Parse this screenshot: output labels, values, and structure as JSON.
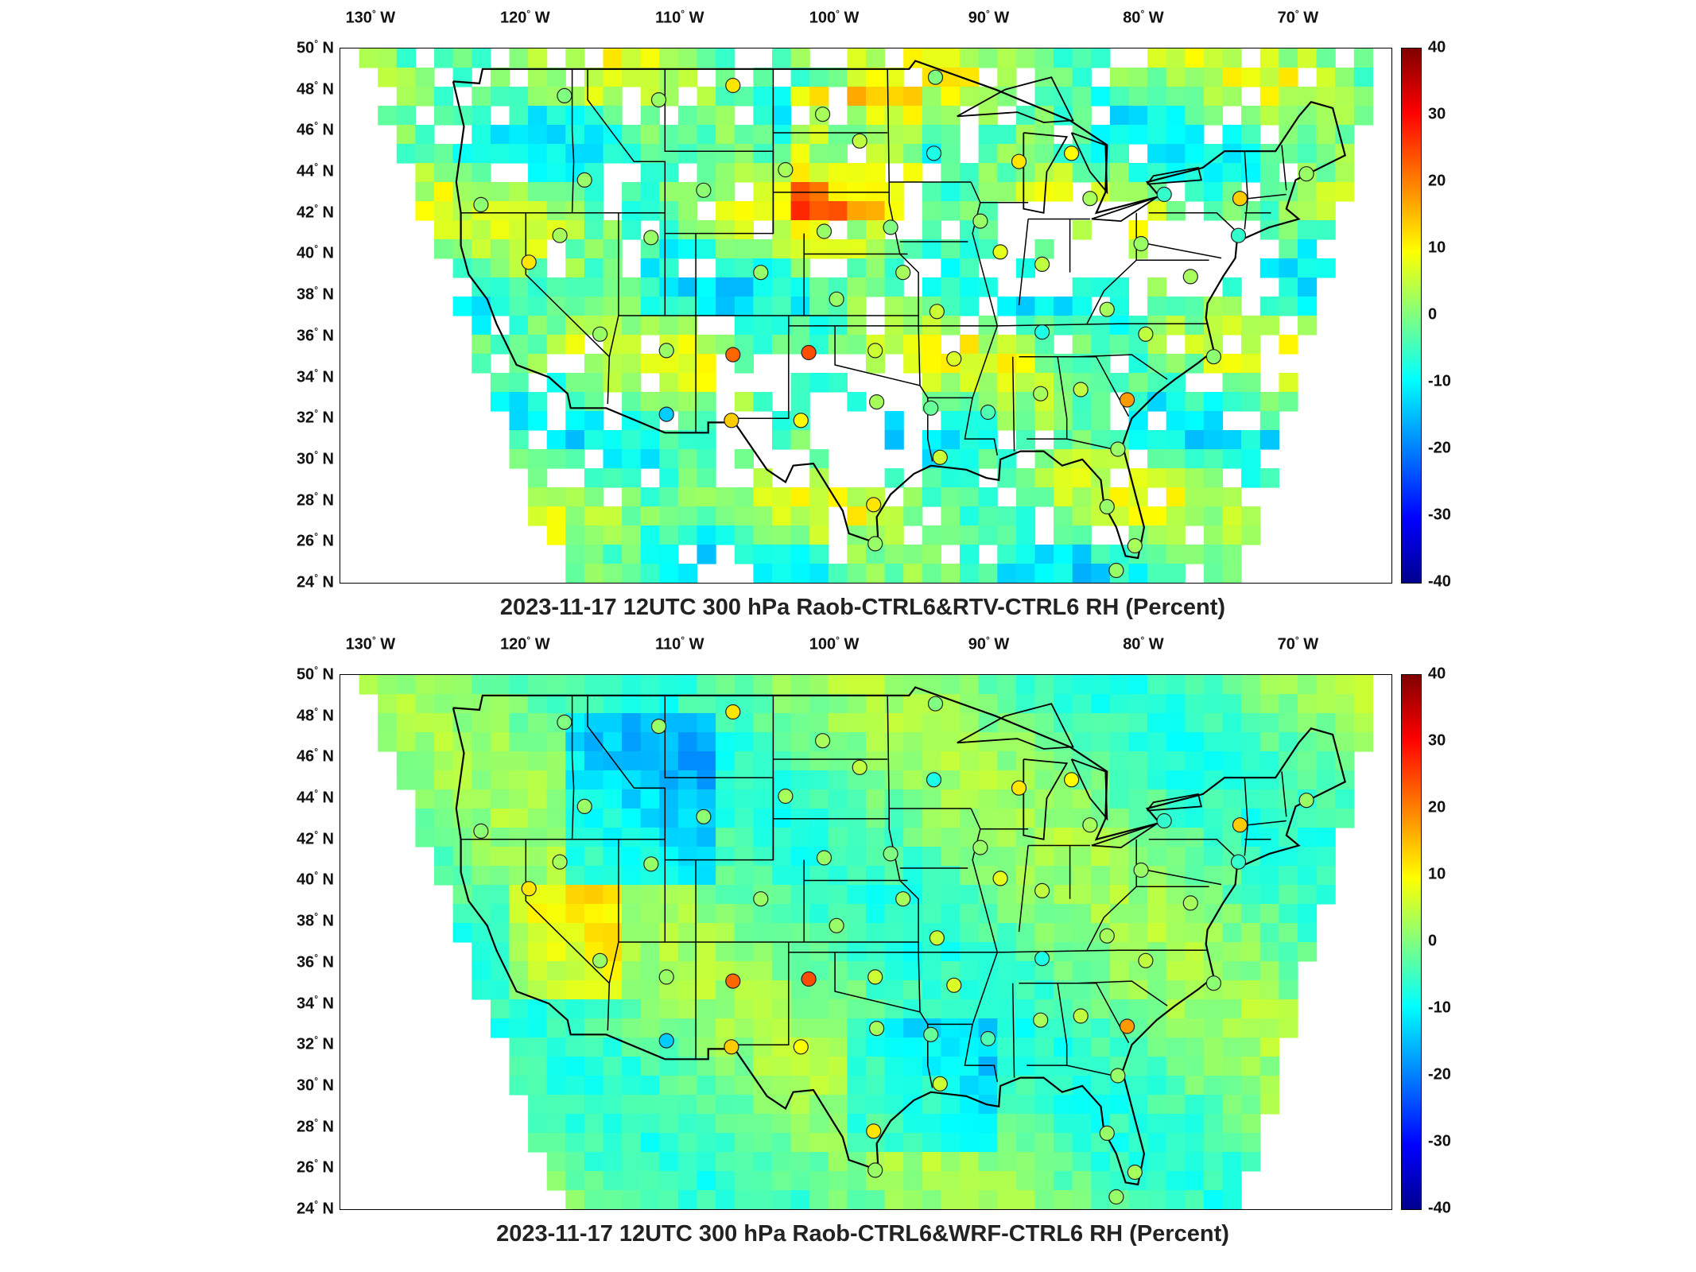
{
  "panels": [
    {
      "title": "2023-11-17 12UTC 300 hPa Raob-CTRL6&RTV-CTRL6 RH (Percent)",
      "field": "RTV",
      "lon_labels": [
        "130",
        "120",
        "110",
        "100",
        "90",
        "80",
        "70"
      ],
      "lon_suffix": "W",
      "lat_labels": [
        "50",
        "48",
        "46",
        "44",
        "42",
        "40",
        "38",
        "36",
        "34",
        "32",
        "30",
        "28",
        "26",
        "24"
      ],
      "lat_suffix": "N",
      "colorbar_ticks": [
        "40",
        "30",
        "20",
        "10",
        "0",
        "-10",
        "-20",
        "-30",
        "-40"
      ]
    },
    {
      "title": "2023-11-17 12UTC 300 hPa Raob-CTRL6&WRF-CTRL6 RH (Percent)",
      "field": "WRF",
      "lon_labels": [
        "130",
        "120",
        "110",
        "100",
        "90",
        "80",
        "70"
      ],
      "lon_suffix": "W",
      "lat_labels": [
        "50",
        "48",
        "46",
        "44",
        "42",
        "40",
        "38",
        "36",
        "34",
        "32",
        "30",
        "28",
        "26",
        "24"
      ],
      "lat_suffix": "N",
      "colorbar_ticks": [
        "40",
        "30",
        "20",
        "10",
        "0",
        "-10",
        "-20",
        "-30",
        "-40"
      ]
    }
  ],
  "colorbar_range": [
    -40,
    40
  ],
  "colormap": [
    "#00008f",
    "#0000ff",
    "#0080ff",
    "#00ffff",
    "#80ff80",
    "#ffff00",
    "#ff8000",
    "#ff0000",
    "#800000"
  ],
  "stations": [
    {
      "lon": -117.5,
      "lat": 47.7,
      "v": 0
    },
    {
      "lon": -111.4,
      "lat": 47.5,
      "v": 2
    },
    {
      "lon": -106.6,
      "lat": 48.2,
      "v": 12
    },
    {
      "lon": -100.8,
      "lat": 46.8,
      "v": 3
    },
    {
      "lon": -93.5,
      "lat": 48.6,
      "v": 0
    },
    {
      "lon": -98.4,
      "lat": 45.5,
      "v": 5
    },
    {
      "lon": -103.2,
      "lat": 44.1,
      "v": 3
    },
    {
      "lon": -108.5,
      "lat": 43.1,
      "v": 1
    },
    {
      "lon": -116.2,
      "lat": 43.6,
      "v": 2
    },
    {
      "lon": -122.9,
      "lat": 42.4,
      "v": 1
    },
    {
      "lon": -93.6,
      "lat": 44.9,
      "v": -8
    },
    {
      "lon": -88.1,
      "lat": 44.5,
      "v": 12
    },
    {
      "lon": -84.7,
      "lat": 44.9,
      "v": 10
    },
    {
      "lon": -83.5,
      "lat": 42.7,
      "v": 3
    },
    {
      "lon": -78.7,
      "lat": 42.9,
      "v": -6
    },
    {
      "lon": -73.8,
      "lat": 42.7,
      "v": 14
    },
    {
      "lon": -69.5,
      "lat": 43.9,
      "v": 2
    },
    {
      "lon": -73.9,
      "lat": 40.9,
      "v": -6
    },
    {
      "lon": -80.2,
      "lat": 40.5,
      "v": 2
    },
    {
      "lon": -86.6,
      "lat": 39.5,
      "v": 5
    },
    {
      "lon": -90.6,
      "lat": 41.6,
      "v": 2
    },
    {
      "lon": -89.3,
      "lat": 40.1,
      "v": 8
    },
    {
      "lon": -96.4,
      "lat": 41.3,
      "v": 0
    },
    {
      "lon": -100.7,
      "lat": 41.1,
      "v": 2
    },
    {
      "lon": -104.8,
      "lat": 39.1,
      "v": 2
    },
    {
      "lon": -111.9,
      "lat": 40.8,
      "v": 2
    },
    {
      "lon": -117.8,
      "lat": 40.9,
      "v": 3
    },
    {
      "lon": -119.8,
      "lat": 39.6,
      "v": 12
    },
    {
      "lon": -95.6,
      "lat": 39.1,
      "v": 3
    },
    {
      "lon": -99.9,
      "lat": 37.8,
      "v": 2
    },
    {
      "lon": -93.4,
      "lat": 37.2,
      "v": 6
    },
    {
      "lon": -86.6,
      "lat": 36.2,
      "v": -8
    },
    {
      "lon": -82.4,
      "lat": 37.3,
      "v": 3
    },
    {
      "lon": -79.9,
      "lat": 36.1,
      "v": 5
    },
    {
      "lon": -77.0,
      "lat": 38.9,
      "v": 3
    },
    {
      "lon": -75.5,
      "lat": 35.0,
      "v": 1
    },
    {
      "lon": -115.2,
      "lat": 36.1,
      "v": 2
    },
    {
      "lon": -110.9,
      "lat": 35.3,
      "v": 2
    },
    {
      "lon": -106.6,
      "lat": 35.1,
      "v": 22
    },
    {
      "lon": -101.7,
      "lat": 35.2,
      "v": 24
    },
    {
      "lon": -97.4,
      "lat": 35.3,
      "v": 6
    },
    {
      "lon": -92.3,
      "lat": 34.9,
      "v": 7
    },
    {
      "lon": -97.3,
      "lat": 32.8,
      "v": 3
    },
    {
      "lon": -102.2,
      "lat": 31.9,
      "v": 10
    },
    {
      "lon": -106.7,
      "lat": 31.9,
      "v": 14
    },
    {
      "lon": -110.9,
      "lat": 32.2,
      "v": -14
    },
    {
      "lon": -93.8,
      "lat": 32.5,
      "v": -2
    },
    {
      "lon": -90.1,
      "lat": 32.3,
      "v": -4
    },
    {
      "lon": -86.7,
      "lat": 33.2,
      "v": 3
    },
    {
      "lon": -84.1,
      "lat": 33.4,
      "v": 5
    },
    {
      "lon": -81.1,
      "lat": 32.9,
      "v": 18
    },
    {
      "lon": -93.2,
      "lat": 30.1,
      "v": 6
    },
    {
      "lon": -97.5,
      "lat": 27.8,
      "v": 12
    },
    {
      "lon": -97.4,
      "lat": 25.9,
      "v": 2
    },
    {
      "lon": -81.7,
      "lat": 30.5,
      "v": 2
    },
    {
      "lon": -82.4,
      "lat": 27.7,
      "v": 2
    },
    {
      "lon": -80.6,
      "lat": 25.8,
      "v": 3
    },
    {
      "lon": -81.8,
      "lat": 24.6,
      "v": 2
    }
  ],
  "chart_data": [
    {
      "type": "heatmap",
      "title": "2023-11-17 12UTC 300 hPa Raob-CTRL6&RTV-CTRL6 RH (Percent)",
      "x_range_lon": [
        -132,
        -64
      ],
      "y_range_lat": [
        24,
        50
      ],
      "color_range": [
        -40,
        40
      ],
      "colorbar_ticks": [
        40,
        30,
        20,
        10,
        0,
        -10,
        -20,
        -30,
        -40
      ]
    },
    {
      "type": "heatmap",
      "title": "2023-11-17 12UTC 300 hPa Raob-CTRL6&WRF-CTRL6 RH (Percent)",
      "x_range_lon": [
        -132,
        -64
      ],
      "y_range_lat": [
        24,
        50
      ],
      "color_range": [
        -40,
        40
      ],
      "colorbar_ticks": [
        40,
        30,
        20,
        10,
        0,
        -10,
        -20,
        -30,
        -40
      ]
    }
  ]
}
